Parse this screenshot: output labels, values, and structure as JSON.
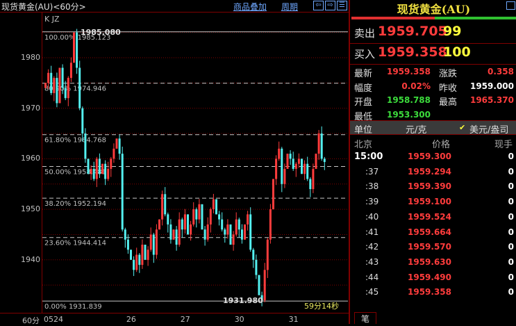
{
  "header": {
    "title": "现货黄金(AU)<60分>",
    "overlay_link": "商品叠加",
    "period_link": "周期",
    "nav_buttons": [
      "⇦",
      "⇨",
      "☰"
    ]
  },
  "chart": {
    "indicator_label": "K JZ",
    "y_ticks": [
      1980,
      1970,
      1960,
      1950,
      1940
    ],
    "x_period_label": "60分",
    "x_ticks": [
      {
        "label": "0524",
        "idx": 0
      },
      {
        "label": "26",
        "idx": 29
      },
      {
        "label": "27",
        "idx": 48
      },
      {
        "label": "30",
        "idx": 67
      },
      {
        "label": "31",
        "idx": 86
      }
    ],
    "fib_levels": [
      {
        "pct": "100.00%",
        "value": 1985.123
      },
      {
        "pct": "80.90%",
        "value": 1974.946
      },
      {
        "pct": "61.80%",
        "value": 1964.768
      },
      {
        "pct": "50.00%",
        "value": 1958.481
      },
      {
        "pct": "38.20%",
        "value": 1952.194
      },
      {
        "pct": "23.60%",
        "value": 1944.414
      },
      {
        "pct": "0.00%",
        "value": 1931.839
      }
    ],
    "high_marker": "1985.080",
    "low_marker": "1931.980",
    "countdown": "59分14秒",
    "colors": {
      "up": "#ff3c3c",
      "down": "#54f0f0",
      "fib": "#c8c8c8",
      "grid": "#800000"
    },
    "closes": [
      1975,
      1977,
      1973,
      1976,
      1971,
      1978,
      1974,
      1972,
      1976,
      1979,
      1985,
      1978,
      1970,
      1965,
      1960,
      1957,
      1958,
      1956,
      1960,
      1957,
      1959,
      1956,
      1958,
      1960,
      1962,
      1964,
      1961,
      1946,
      1944,
      1942,
      1940,
      1938,
      1941,
      1939,
      1943,
      1940,
      1942,
      1945,
      1941,
      1946,
      1948,
      1953,
      1949,
      1947,
      1944,
      1946,
      1943,
      1948,
      1946,
      1949,
      1945,
      1947,
      1950,
      1948,
      1951,
      1946,
      1944,
      1947,
      1950,
      1952,
      1949,
      1948,
      1946,
      1945,
      1947,
      1943,
      1945,
      1948,
      1946,
      1944,
      1947,
      1949,
      1942,
      1940,
      1937,
      1933,
      1932,
      1938,
      1944,
      1950,
      1956,
      1960,
      1962,
      1955,
      1958,
      1961,
      1960,
      1958,
      1959,
      1960,
      1957,
      1959,
      1956,
      1954,
      1958,
      1961,
      1965,
      1960,
      1959.358
    ]
  },
  "quote": {
    "title": "现货黄金(AU)",
    "sell": {
      "label": "卖出",
      "price": "1959.705",
      "vol": "99"
    },
    "buy": {
      "label": "买入",
      "price": "1959.358",
      "vol": "100"
    },
    "stats": [
      {
        "l1": "最新",
        "v1": "1959.358",
        "c1": "red",
        "l2": "涨跌",
        "v2": "0.358",
        "c2": "red"
      },
      {
        "l1": "幅度",
        "v1": "0.02%",
        "c1": "red",
        "l2": "昨收",
        "v2": "1959.000",
        "c2": "white"
      },
      {
        "l1": "开盘",
        "v1": "1958.788",
        "c1": "green",
        "l2": "最高",
        "v2": "1965.370",
        "c2": "red"
      },
      {
        "l1": "最低",
        "v1": "1953.300",
        "c1": "green",
        "l2": "",
        "v2": "",
        "c2": "white"
      }
    ],
    "unit": {
      "label": "单位",
      "opt1": "元/克",
      "opt2": "美元/盎司",
      "check": "✔"
    },
    "ticks_header": {
      "time": "北京",
      "price": "价格",
      "vol": "现手"
    },
    "ticks": [
      {
        "time": "15:00",
        "price": "1959.300",
        "vol": "0"
      },
      {
        "time": ":37",
        "price": "1959.294",
        "vol": "0"
      },
      {
        "time": ":38",
        "price": "1959.390",
        "vol": "0"
      },
      {
        "time": ":39",
        "price": "1959.100",
        "vol": "0"
      },
      {
        "time": ":40",
        "price": "1959.524",
        "vol": "0"
      },
      {
        "time": ":41",
        "price": "1959.664",
        "vol": "0"
      },
      {
        "time": ":42",
        "price": "1959.570",
        "vol": "0"
      },
      {
        "time": ":43",
        "price": "1959.630",
        "vol": "0"
      },
      {
        "time": ":44",
        "price": "1959.490",
        "vol": "0"
      },
      {
        "time": ":45",
        "price": "1959.358",
        "vol": "0"
      }
    ],
    "tab": "笔"
  }
}
